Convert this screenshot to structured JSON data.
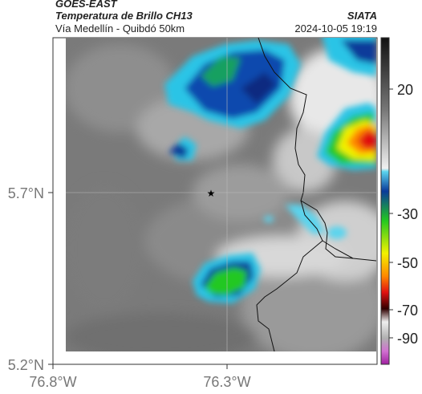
{
  "header": {
    "satellite": "GOES-EAST",
    "product": "Temperatura de Brillo CH13",
    "region": "Vía Medellín - Quibdó 50km",
    "org": "SIATA",
    "datetime": "2024-10-05 19:19"
  },
  "axes": {
    "lat_labels": [
      "5.7°N",
      "5.2°N"
    ],
    "lon_labels": [
      "76.8°W",
      "76.3°W"
    ]
  },
  "colorbar": {
    "ticks": [
      "20",
      "-30",
      "-50",
      "-70",
      "-90"
    ],
    "colors": {
      "warm_gray": "#6e6e6e",
      "white": "#f4f4f4",
      "cyan": "#2bc4e6",
      "blue": "#0a3a9a",
      "green": "#22c820",
      "yellow": "#f2f200",
      "orange": "#ff8800",
      "red": "#e01010",
      "black": "#000000",
      "magenta": "#c040c0"
    }
  },
  "map": {
    "marker": "star-icon",
    "center_lat": "5.7°N",
    "center_lon": "76.3°W"
  }
}
